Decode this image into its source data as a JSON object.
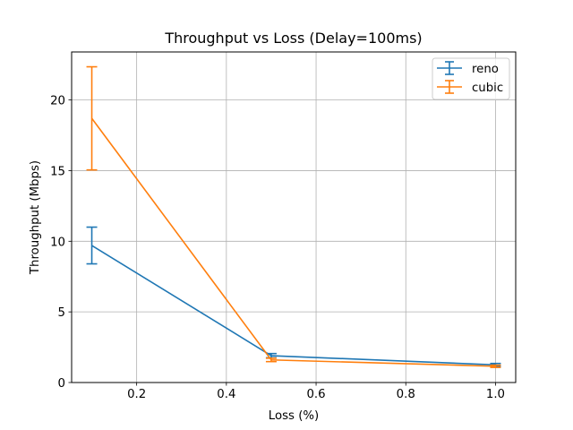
{
  "chart_data": {
    "type": "line",
    "title": "Throughput vs Loss (Delay=100ms)",
    "xlabel": "Loss (%)",
    "ylabel": "Throughput (Mbps)",
    "xlim": [
      0.055,
      1.045
    ],
    "ylim": [
      0,
      23.4
    ],
    "xticks": [
      0.2,
      0.4,
      0.6,
      0.8,
      1.0
    ],
    "xtick_labels": [
      "0.2",
      "0.4",
      "0.6",
      "0.8",
      "1.0"
    ],
    "yticks": [
      0,
      5,
      10,
      15,
      20
    ],
    "ytick_labels": [
      "0",
      "5",
      "10",
      "15",
      "20"
    ],
    "grid": true,
    "legend_position": "top-right",
    "error_bars": true,
    "series": [
      {
        "name": "reno",
        "color": "#1f77b4",
        "x": [
          0.1,
          0.5,
          1.0
        ],
        "y": [
          9.7,
          1.9,
          1.25
        ],
        "yerr": [
          1.3,
          0.15,
          0.1
        ]
      },
      {
        "name": "cubic",
        "color": "#ff7f0e",
        "x": [
          0.1,
          0.5,
          1.0
        ],
        "y": [
          18.7,
          1.6,
          1.15
        ],
        "yerr": [
          3.65,
          0.12,
          0.08
        ]
      }
    ]
  }
}
